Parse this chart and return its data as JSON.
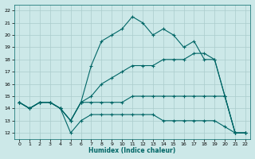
{
  "xlabel": "Humidex (Indice chaleur)",
  "bg_color": "#cce8e8",
  "grid_color": "#aacccc",
  "line_color": "#006666",
  "xlim": [
    -0.5,
    22.5
  ],
  "ylim": [
    11.5,
    22.5
  ],
  "yticks": [
    12,
    13,
    14,
    15,
    16,
    17,
    18,
    19,
    20,
    21,
    22
  ],
  "xticks": [
    0,
    1,
    2,
    3,
    4,
    5,
    6,
    7,
    8,
    9,
    10,
    11,
    12,
    13,
    14,
    15,
    16,
    17,
    18,
    19,
    20,
    21,
    22
  ],
  "series": [
    {
      "x": [
        0,
        1,
        2,
        3,
        4,
        5,
        6,
        7,
        8,
        9,
        10,
        11,
        12,
        13,
        14,
        15,
        16,
        17,
        18,
        19,
        20,
        21,
        22
      ],
      "y": [
        14.5,
        14.0,
        14.5,
        14.5,
        14.0,
        13.0,
        14.5,
        17.5,
        19.5,
        20.0,
        20.5,
        21.5,
        21.0,
        20.0,
        20.5,
        20.0,
        19.0,
        19.5,
        18.0,
        18.0,
        15.0,
        12.0,
        12.0
      ]
    },
    {
      "x": [
        0,
        1,
        2,
        3,
        4,
        5,
        6,
        7,
        8,
        9,
        10,
        11,
        12,
        13,
        14,
        15,
        16,
        17,
        18,
        19,
        20,
        21,
        22
      ],
      "y": [
        14.5,
        14.0,
        14.5,
        14.5,
        14.0,
        13.0,
        14.5,
        15.0,
        16.0,
        16.5,
        17.0,
        17.5,
        17.5,
        17.5,
        18.0,
        18.0,
        18.0,
        18.5,
        18.5,
        18.0,
        15.0,
        12.0,
        12.0
      ]
    },
    {
      "x": [
        0,
        1,
        2,
        3,
        4,
        5,
        6,
        7,
        8,
        9,
        10,
        11,
        12,
        13,
        14,
        15,
        16,
        17,
        18,
        19,
        20,
        21,
        22
      ],
      "y": [
        14.5,
        14.0,
        14.5,
        14.5,
        14.0,
        13.0,
        14.5,
        14.5,
        14.5,
        14.5,
        14.5,
        15.0,
        15.0,
        15.0,
        15.0,
        15.0,
        15.0,
        15.0,
        15.0,
        15.0,
        15.0,
        12.0,
        12.0
      ]
    },
    {
      "x": [
        0,
        1,
        2,
        3,
        4,
        5,
        6,
        7,
        8,
        9,
        10,
        11,
        12,
        13,
        14,
        15,
        16,
        17,
        18,
        19,
        20,
        21,
        22
      ],
      "y": [
        14.5,
        14.0,
        14.5,
        14.5,
        14.0,
        12.0,
        13.0,
        13.5,
        13.5,
        13.5,
        13.5,
        13.5,
        13.5,
        13.5,
        13.0,
        13.0,
        13.0,
        13.0,
        13.0,
        13.0,
        12.5,
        12.0,
        12.0
      ]
    }
  ]
}
